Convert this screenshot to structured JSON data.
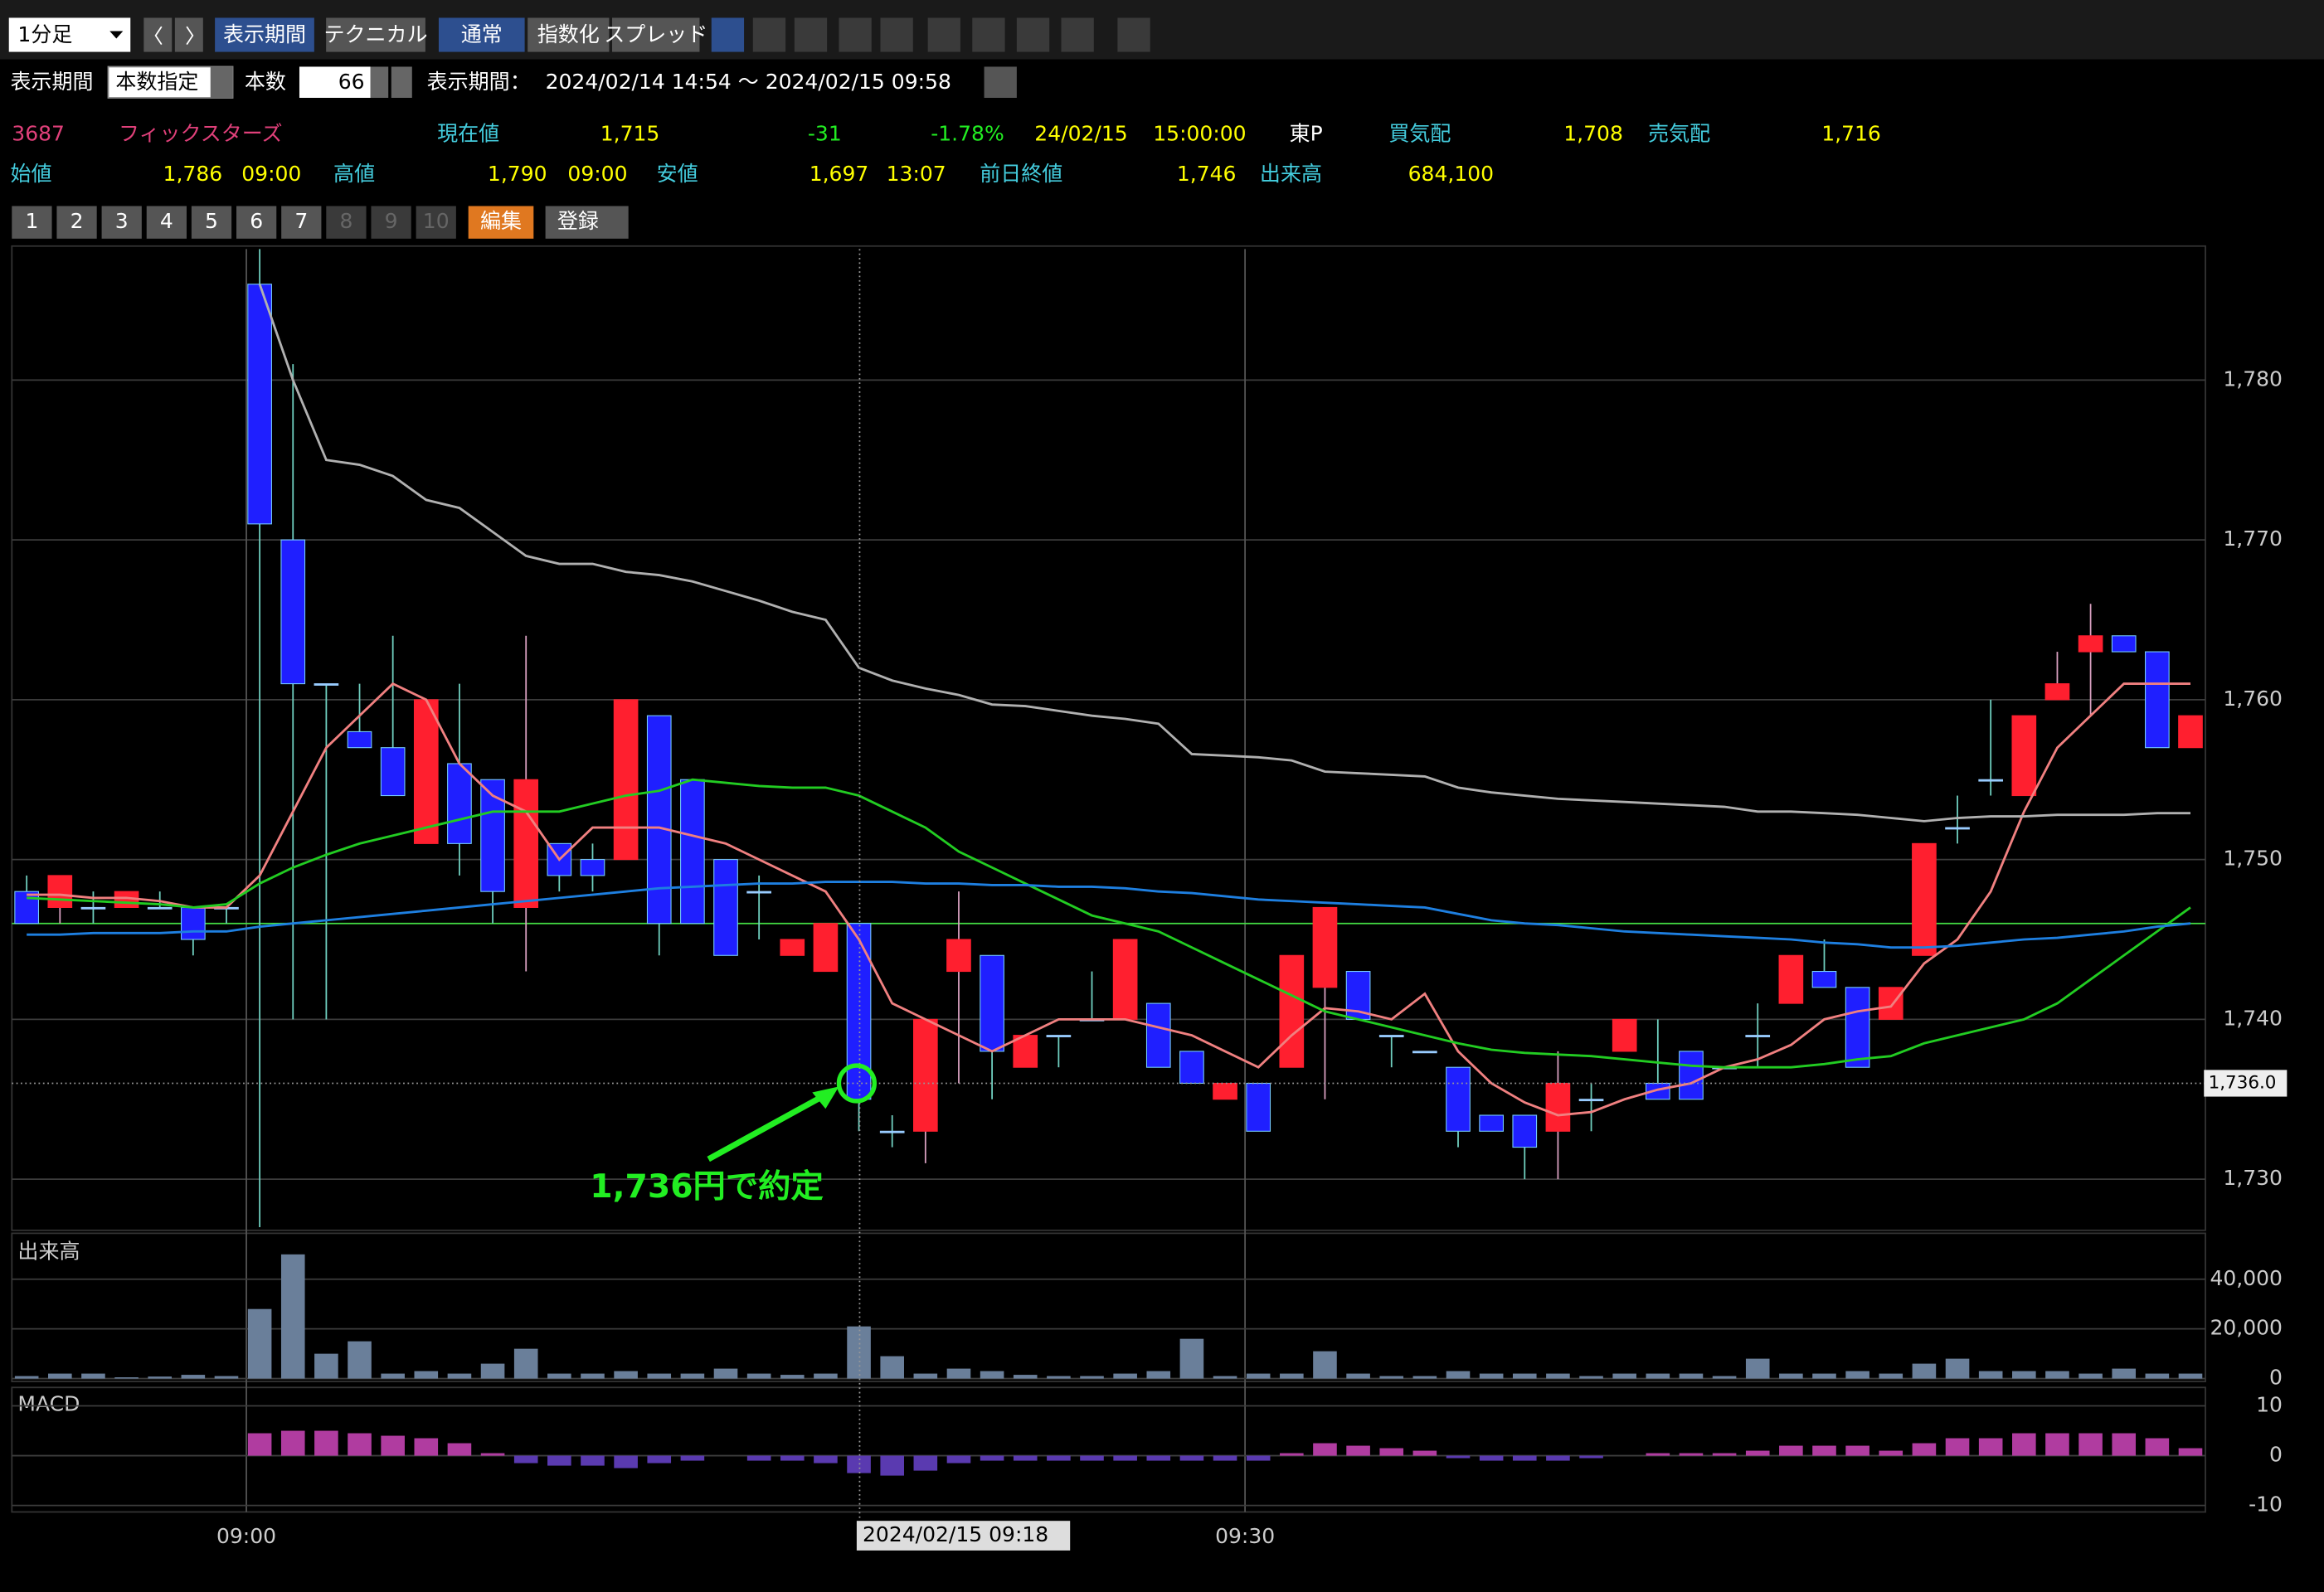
{
  "toolbar": {
    "period": "1分足",
    "buttons": [
      "表示期間",
      "テクニカル",
      "通常",
      "指数化",
      "スプレッド"
    ]
  },
  "settings": {
    "label": "表示期間",
    "mode": "本数指定",
    "count_label": "本数",
    "count": "66",
    "range_label": "表示期間：",
    "range": "2024/02/14 14:54 ～ 2024/02/15 09:58"
  },
  "quote": {
    "row1": [
      "3687",
      "フィックスターズ",
      "現在値",
      "1,715",
      "-31",
      "-1.78%",
      "24/02/15",
      "15:00:00",
      "東P",
      "買気配",
      "1,708",
      "売気配",
      "1,716"
    ],
    "row2": [
      "始値",
      "1,786",
      "09:00",
      "高値",
      "1,790",
      "09:00",
      "安値",
      "1,697",
      "13:07",
      "前日終値",
      "1,746",
      "出来高",
      "684,100"
    ]
  },
  "tabs": [
    "1",
    "2",
    "3",
    "4",
    "5",
    "6",
    "7",
    "8",
    "9",
    "10"
  ],
  "edit": "編集",
  "register": "登録",
  "chart_data": {
    "type": "candlestick",
    "categories": [
      null,
      null,
      null,
      null,
      null,
      null,
      null,
      "09:00",
      null,
      null,
      null,
      null,
      null,
      null,
      null,
      null,
      null,
      null,
      null,
      null,
      null,
      null,
      null,
      null,
      null,
      null,
      null,
      null,
      null,
      null,
      null,
      null,
      null,
      null,
      null,
      null,
      null,
      "09:30",
      null,
      null,
      null,
      null,
      null,
      null,
      null,
      null,
      null,
      null,
      null,
      null,
      null,
      null,
      null,
      null,
      null,
      null,
      null,
      null,
      null,
      null,
      null,
      null,
      null,
      null,
      null,
      null
    ],
    "open": [
      1748,
      1747,
      1747,
      1747,
      1747,
      1747,
      1747,
      1786,
      1770,
      1761,
      1758,
      1757,
      1751,
      1756,
      1755,
      1747,
      1751,
      1750,
      1750,
      1759,
      1755,
      1750,
      1748,
      1744,
      1743,
      1746,
      1733,
      1733,
      1743,
      1744,
      1737,
      1739,
      1740,
      1740,
      1741,
      1738,
      1735,
      1736,
      1737,
      1742,
      1743,
      1739,
      1738,
      1737,
      1734,
      1734,
      1733,
      1735,
      1738,
      1736,
      1738,
      1737,
      1739,
      1741,
      1743,
      1742,
      1740,
      1744,
      1752,
      1755,
      1754,
      1760,
      1763,
      1764,
      1763,
      1757
    ],
    "high": [
      1749,
      1749,
      1748,
      1748,
      1748,
      1747,
      1747,
      1790,
      1781,
      1761,
      1761,
      1764,
      1760,
      1761,
      1755,
      1764,
      1751,
      1751,
      1760,
      1759,
      1755,
      1750,
      1749,
      1745,
      1746,
      1746,
      1734,
      1740,
      1748,
      1744,
      1739,
      1739,
      1743,
      1745,
      1741,
      1738,
      1736,
      1736,
      1744,
      1747,
      1743,
      1739,
      1738,
      1737,
      1734,
      1734,
      1738,
      1736,
      1740,
      1740,
      1738,
      1737,
      1741,
      1744,
      1745,
      1742,
      1742,
      1751,
      1754,
      1760,
      1759,
      1763,
      1766,
      1764,
      1763,
      1759
    ],
    "low": [
      1746,
      1746,
      1746,
      1747,
      1747,
      1744,
      1746,
      1727,
      1740,
      1740,
      1757,
      1754,
      1751,
      1749,
      1746,
      1743,
      1748,
      1748,
      1750,
      1744,
      1746,
      1744,
      1745,
      1744,
      1743,
      1733,
      1732,
      1731,
      1736,
      1735,
      1737,
      1737,
      1740,
      1740,
      1737,
      1736,
      1735,
      1733,
      1737,
      1735,
      1740,
      1737,
      1738,
      1732,
      1733,
      1730,
      1730,
      1733,
      1738,
      1735,
      1735,
      1737,
      1737,
      1741,
      1742,
      1737,
      1740,
      1744,
      1751,
      1754,
      1754,
      1760,
      1759,
      1763,
      1757,
      1757
    ],
    "close": [
      1746,
      1749,
      1747,
      1748,
      1747,
      1745,
      1747,
      1771,
      1761,
      1761,
      1757,
      1754,
      1760,
      1751,
      1748,
      1755,
      1749,
      1749,
      1760,
      1746,
      1746,
      1744,
      1748,
      1745,
      1746,
      1735,
      1733,
      1740,
      1745,
      1738,
      1739,
      1739,
      1740,
      1745,
      1737,
      1736,
      1736,
      1733,
      1744,
      1747,
      1740,
      1739,
      1738,
      1733,
      1733,
      1732,
      1736,
      1735,
      1740,
      1735,
      1735,
      1737,
      1739,
      1744,
      1742,
      1737,
      1742,
      1751,
      1752,
      1755,
      1759,
      1761,
      1764,
      1763,
      1757,
      1759
    ],
    "series": [
      {
        "color": "#f08080",
        "values": [
          1747.8,
          1747.8,
          1747.6,
          1747.6,
          1747.4,
          1747,
          1747,
          1749,
          1753,
          1757,
          1759,
          1761,
          1760,
          1756,
          1754,
          1753,
          1750,
          1752,
          1752,
          1752,
          1751.5,
          1751,
          1750,
          1749,
          1748,
          1745,
          1741,
          1740,
          1739,
          1738,
          1739,
          1740,
          1740,
          1740,
          1739.5,
          1739,
          1738,
          1737,
          1739,
          1740.7,
          1740.5,
          1740,
          1741.6,
          1738,
          1736,
          1734.8,
          1734,
          1734.2,
          1735,
          1735.6,
          1736,
          1737,
          1737.5,
          1738.4,
          1740,
          1740.5,
          1740.8,
          1743.5,
          1745,
          1748,
          1753,
          1757,
          1759,
          1761,
          1761,
          1761
        ]
      },
      {
        "color": "#22cc22",
        "values": [
          1747.6,
          1747.5,
          1747.4,
          1747.3,
          1747.2,
          1747,
          1747.2,
          1748.5,
          1749.5,
          1750.3,
          1751,
          1751.5,
          1752,
          1752.5,
          1753,
          1753,
          1753,
          1753.5,
          1754,
          1754.3,
          1755,
          1754.8,
          1754.6,
          1754.5,
          1754.5,
          1754,
          1753,
          1752,
          1750.5,
          1749.5,
          1748.5,
          1747.5,
          1746.5,
          1746,
          1745.5,
          1744.5,
          1743.5,
          1742.5,
          1741.5,
          1740.5,
          1740,
          1739.5,
          1739,
          1738.5,
          1738.1,
          1737.9,
          1737.8,
          1737.7,
          1737.5,
          1737.3,
          1737.1,
          1737,
          1737,
          1737,
          1737.2,
          1737.5,
          1737.7,
          1738.5,
          1739,
          1739.5,
          1740,
          1741,
          1742.5,
          1744,
          1745.5,
          1747
        ]
      },
      {
        "color": "#1e7fe0",
        "values": [
          1745.3,
          1745.3,
          1745.4,
          1745.4,
          1745.4,
          1745.5,
          1745.5,
          1745.8,
          1746,
          1746.2,
          1746.4,
          1746.6,
          1746.8,
          1747,
          1747.2,
          1747.4,
          1747.6,
          1747.8,
          1748,
          1748.2,
          1748.3,
          1748.4,
          1748.5,
          1748.5,
          1748.6,
          1748.6,
          1748.6,
          1748.5,
          1748.5,
          1748.4,
          1748.4,
          1748.3,
          1748.3,
          1748.2,
          1748,
          1747.9,
          1747.7,
          1747.5,
          1747.4,
          1747.3,
          1747.2,
          1747.1,
          1747,
          1746.6,
          1746.2,
          1746,
          1745.9,
          1745.7,
          1745.5,
          1745.4,
          1745.3,
          1745.2,
          1745.1,
          1745,
          1744.8,
          1744.7,
          1744.5,
          1744.5,
          1744.6,
          1744.8,
          1745,
          1745.1,
          1745.3,
          1745.5,
          1745.8,
          1746
        ]
      },
      {
        "color": "#b0b0b0",
        "values": [
          null,
          null,
          null,
          null,
          null,
          null,
          null,
          1786,
          1780,
          1775,
          1774.7,
          1774,
          1772.5,
          1772,
          1770.5,
          1769,
          1768.5,
          1768.5,
          1768,
          1767.8,
          1767.4,
          1766.8,
          1766.2,
          1765.5,
          1765,
          1762,
          1761.2,
          1760.7,
          1760.3,
          1759.7,
          1759.6,
          1759.3,
          1759,
          1758.8,
          1758.5,
          1756.6,
          1756.5,
          1756.4,
          1756.2,
          1755.5,
          1755.4,
          1755.3,
          1755.2,
          1754.5,
          1754.2,
          1754,
          1753.8,
          1753.7,
          1753.6,
          1753.5,
          1753.4,
          1753.3,
          1753,
          1753,
          1752.9,
          1752.8,
          1752.6,
          1752.4,
          1752.6,
          1752.7,
          1752.7,
          1752.8,
          1752.8,
          1752.8,
          1752.9,
          1752.9
        ]
      }
    ],
    "reference_line": {
      "value": 1746,
      "color": "#44dd44"
    },
    "up_color": "#ff1f2f",
    "down_color": "#1f1fff",
    "ylim": [
      1726.8,
      1788.2
    ],
    "yticks": [
      {
        "value": 1730,
        "label": "1,730"
      },
      {
        "value": 1740,
        "label": "1,740"
      },
      {
        "value": 1750,
        "label": "1,750"
      },
      {
        "value": 1760,
        "label": "1,760"
      },
      {
        "value": 1770,
        "label": "1,770"
      },
      {
        "value": 1780,
        "label": "1,780"
      }
    ],
    "grid": true,
    "crosshair": {
      "label": "2024/02/15 09:18",
      "value": {
        "value": 1736,
        "label": "1,736.0"
      }
    },
    "annotation": {
      "text": "1,736円で約定",
      "color": "#22ee22"
    },
    "volume": {
      "title": "出来高",
      "color": "#6a7f9a",
      "values": [
        1000,
        2000,
        2000,
        500,
        800,
        1500,
        1000,
        28000,
        50000,
        10000,
        15000,
        2000,
        3000,
        2000,
        6000,
        12000,
        2000,
        2000,
        3000,
        2000,
        2000,
        4000,
        2000,
        1500,
        2000,
        21000,
        9000,
        2000,
        4000,
        3000,
        1500,
        1000,
        1000,
        2000,
        3000,
        16000,
        1000,
        2000,
        2000,
        11000,
        2000,
        1000,
        1000,
        3000,
        2000,
        2000,
        2000,
        1000,
        2000,
        2000,
        2000,
        1000,
        8000,
        2000,
        2000,
        3000,
        2000,
        6000,
        8000,
        3000,
        3000,
        3000,
        2000,
        4000,
        2000,
        2000
      ],
      "ylim": [
        0,
        57300
      ],
      "yticks": [
        0,
        {
          "value": 20000,
          "label": "20,000"
        },
        {
          "value": 40000,
          "label": "40,000"
        }
      ]
    },
    "macd": {
      "title": "MACD",
      "positive_color": "#b03ca0",
      "negative_color": "#5a3ab0",
      "values": [
        0,
        0,
        0,
        0,
        0,
        0,
        0,
        4.5,
        5,
        5,
        4.5,
        4,
        3.5,
        2.5,
        0.5,
        -1.5,
        -2,
        -2,
        -2.5,
        -1.5,
        -1,
        0,
        -1,
        -1,
        -1.5,
        -3.5,
        -4,
        -3,
        -1.5,
        -1,
        -1,
        -1,
        -1,
        -1,
        -1,
        -1,
        -1,
        -1,
        0.5,
        2.5,
        2,
        1.5,
        1,
        -0.5,
        -1,
        -1,
        -1,
        -0.5,
        0,
        0.5,
        0.5,
        0.5,
        1,
        2,
        2,
        2,
        1,
        2.5,
        3.5,
        3.5,
        4.5,
        4.5,
        4.5,
        4.5,
        3.5,
        1.5
      ],
      "ylim": [
        -11.3,
        13.1
      ],
      "yticks": [
        -10,
        0,
        10
      ]
    }
  }
}
